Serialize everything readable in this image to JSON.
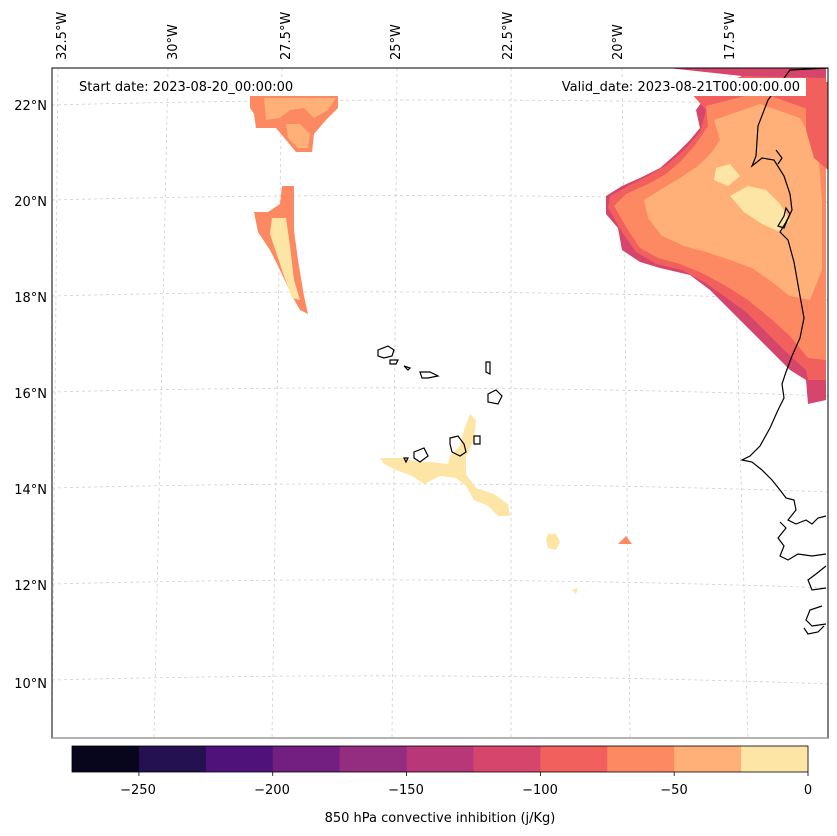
{
  "map": {
    "start_date_label": "Start date: 2023-08-20_00:00:00",
    "valid_date_label": "Valid_date: 2023-08-21T00:00:00.00",
    "lon_labels": [
      "32.5°W",
      "30°W",
      "27.5°W",
      "25°W",
      "22.5°W",
      "20°W",
      "17.5°W"
    ],
    "lat_labels": [
      "22°N",
      "20°N",
      "18°N",
      "16°N",
      "14°N",
      "12°N",
      "10°N"
    ],
    "variable": "850 hPa convective inhibition",
    "units": "j/Kg"
  },
  "colorbar": {
    "label": "850 hPa convective inhibition (j/Kg)",
    "tick_labels": [
      "−250",
      "−200",
      "−150",
      "−100",
      "−50",
      "0"
    ],
    "levels": [
      -275,
      -250,
      -225,
      -200,
      -175,
      -150,
      -125,
      -100,
      -75,
      -50,
      -25,
      0
    ],
    "colors": [
      "#07061c",
      "#231151",
      "#4f127b",
      "#721f81",
      "#942c80",
      "#b73779",
      "#d6456c",
      "#f1605d",
      "#fc8961",
      "#feb078",
      "#fde6a5"
    ]
  },
  "colors": {
    "land_outline": "#000000",
    "gridline": "#cfcfcf"
  }
}
